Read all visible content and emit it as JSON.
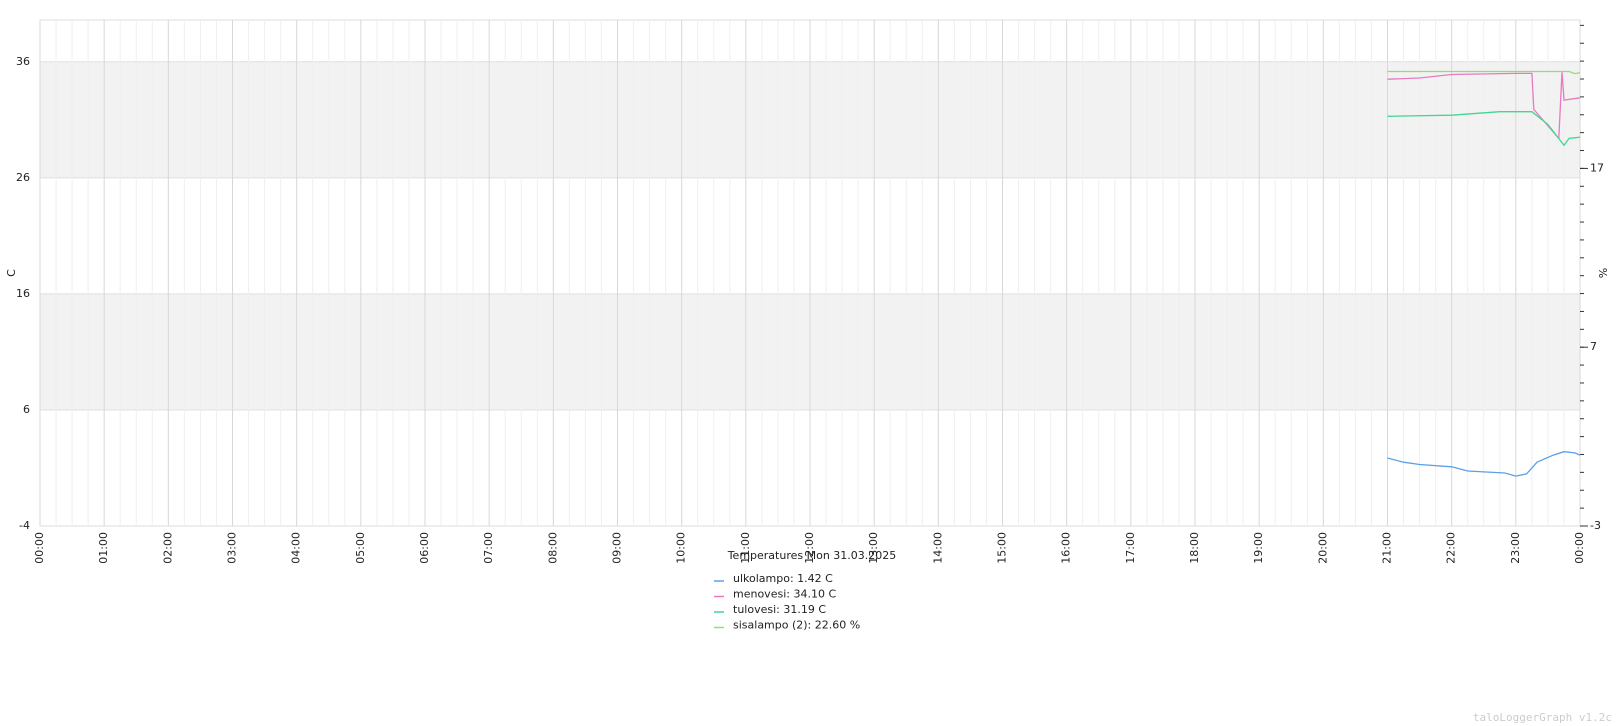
{
  "chart_data": {
    "type": "line",
    "title": "Temperatures Mon 31.03.2025",
    "y_label": "C",
    "y2_label": "%",
    "footer": "taloLoggerGraph v1.2c",
    "xlim": [
      0,
      24
    ],
    "xticks": [
      {
        "value": 0,
        "label": "00:00"
      },
      {
        "value": 1,
        "label": "01:00"
      },
      {
        "value": 2,
        "label": "02:00"
      },
      {
        "value": 3,
        "label": "03:00"
      },
      {
        "value": 4,
        "label": "04:00"
      },
      {
        "value": 5,
        "label": "05:00"
      },
      {
        "value": 6,
        "label": "06:00"
      },
      {
        "value": 7,
        "label": "07:00"
      },
      {
        "value": 8,
        "label": "08:00"
      },
      {
        "value": 9,
        "label": "09:00"
      },
      {
        "value": 10,
        "label": "10:00"
      },
      {
        "value": 11,
        "label": "11:00"
      },
      {
        "value": 12,
        "label": "12:00"
      },
      {
        "value": 13,
        "label": "13:00"
      },
      {
        "value": 14,
        "label": "14:00"
      },
      {
        "value": 15,
        "label": "15:00"
      },
      {
        "value": 16,
        "label": "16:00"
      },
      {
        "value": 17,
        "label": "17:00"
      },
      {
        "value": 18,
        "label": "18:00"
      },
      {
        "value": 19,
        "label": "19:00"
      },
      {
        "value": 20,
        "label": "20:00"
      },
      {
        "value": 21,
        "label": "21:00"
      },
      {
        "value": 22,
        "label": "22:00"
      },
      {
        "value": 23,
        "label": "23:00"
      },
      {
        "value": 24,
        "label": "00:00"
      }
    ],
    "ylim": [
      -4,
      39.6
    ],
    "yticks": [
      -4,
      6,
      16,
      26,
      36
    ],
    "y2lim": [
      -3,
      25.3
    ],
    "y2ticks": [
      -3,
      7,
      17
    ],
    "series": [
      {
        "name": "ulkolampo: 1.42 C",
        "color": "#5aa0e8",
        "x": [
          21,
          21.25,
          21.5,
          22,
          22.25,
          22.5,
          22.83,
          23,
          23.17,
          23.33,
          23.58,
          23.75,
          23.92,
          24
        ],
        "values": [
          1.86,
          1.5,
          1.3,
          1.1,
          0.74,
          0.66,
          0.57,
          0.3,
          0.5,
          1.5,
          2.1,
          2.4,
          2.3,
          2.1
        ]
      },
      {
        "name": "menovesi: 34.10 C",
        "color": "#e87ac0",
        "x": [
          21,
          21.5,
          22,
          23,
          23.25,
          23.28,
          23.67,
          23.72,
          23.75,
          24
        ],
        "values": [
          34.5,
          34.6,
          34.9,
          35.0,
          35.0,
          31.9,
          29.4,
          35.1,
          32.7,
          32.9
        ]
      },
      {
        "name": "tulovesi: 31.19 C",
        "color": "#40d890",
        "x": [
          21,
          22,
          22.75,
          23.25,
          23.5,
          23.75,
          23.83,
          24
        ],
        "values": [
          31.3,
          31.4,
          31.7,
          31.7,
          30.6,
          28.8,
          29.4,
          29.5
        ]
      },
      {
        "name": "sisalampo (2): 22.60 %",
        "color": "#90e070",
        "axis": "y2",
        "x": [
          21,
          22,
          23,
          23.83,
          23.92,
          24
        ],
        "values": [
          22.42,
          22.42,
          22.42,
          22.42,
          22.3,
          22.35
        ]
      }
    ]
  }
}
